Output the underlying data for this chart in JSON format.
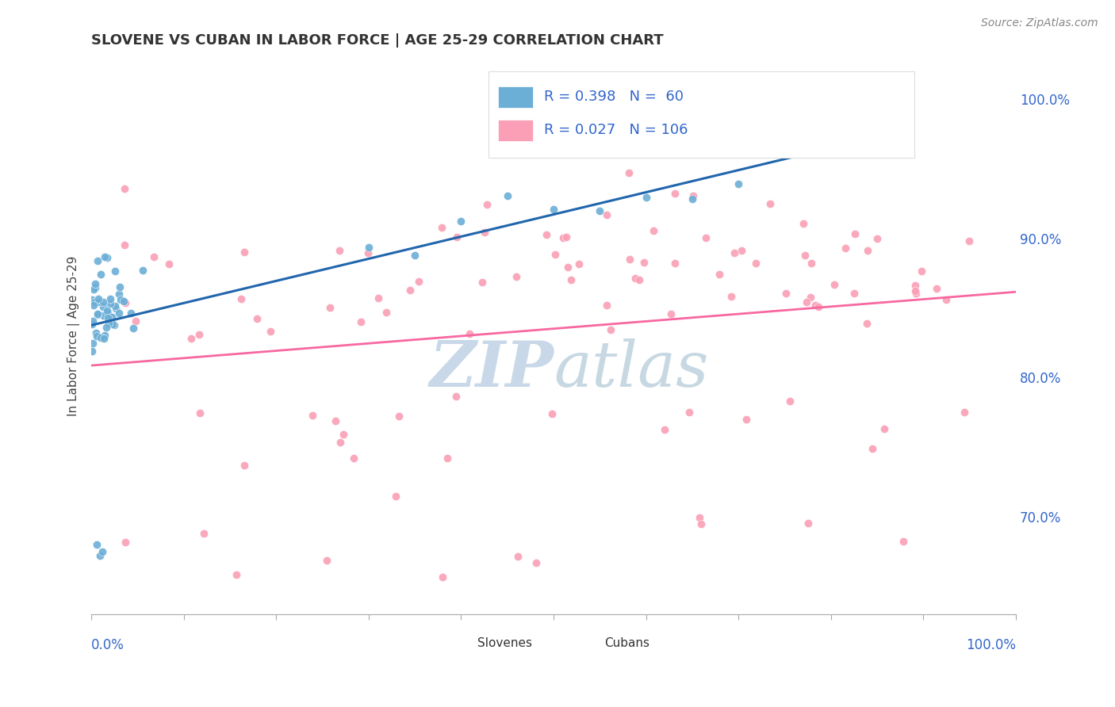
{
  "title": "SLOVENE VS CUBAN IN LABOR FORCE | AGE 25-29 CORRELATION CHART",
  "source_text": "Source: ZipAtlas.com",
  "ylabel": "In Labor Force | Age 25-29",
  "ylabel_right_ticks": [
    "70.0%",
    "80.0%",
    "90.0%",
    "100.0%"
  ],
  "ylabel_right_values": [
    0.7,
    0.8,
    0.9,
    1.0
  ],
  "xlim": [
    0.0,
    1.0
  ],
  "ylim": [
    0.63,
    1.03
  ],
  "slovene_R": 0.398,
  "slovene_N": 60,
  "cuban_R": 0.027,
  "cuban_N": 106,
  "slovene_color": "#6baed6",
  "cuban_color": "#fa9fb5",
  "slovene_line_color": "#2166ac",
  "cuban_line_color": "#f768a1",
  "background_color": "#ffffff",
  "grid_color": "#cccccc",
  "title_color": "#333333",
  "legend_color": "#3366cc",
  "watermark_color": "#c8d8e8"
}
